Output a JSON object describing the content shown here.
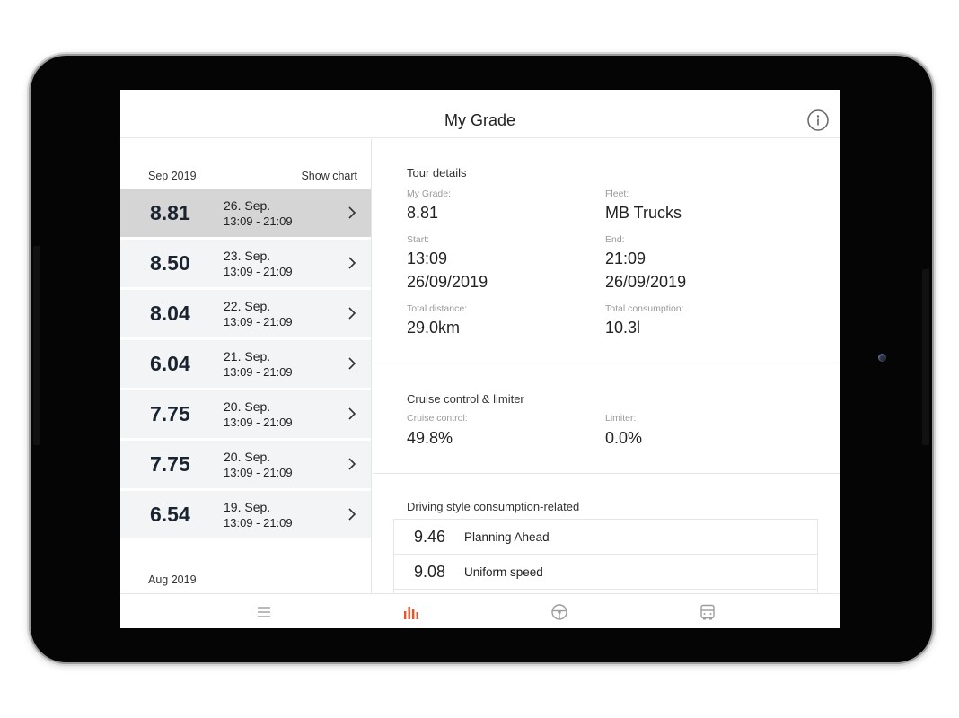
{
  "app": {
    "title": "My Grade"
  },
  "sidebar": {
    "months": [
      "Sep 2019",
      "Aug 2019"
    ],
    "show_chart_label": "Show chart",
    "tours": [
      {
        "grade": "8.81",
        "date": "26. Sep.",
        "time": "13:09 - 21:09",
        "selected": true
      },
      {
        "grade": "8.50",
        "date": "23. Sep.",
        "time": "13:09 - 21:09",
        "selected": false
      },
      {
        "grade": "8.04",
        "date": "22. Sep.",
        "time": "13:09 - 21:09",
        "selected": false
      },
      {
        "grade": "6.04",
        "date": "21. Sep.",
        "time": "13:09 - 21:09",
        "selected": false
      },
      {
        "grade": "7.75",
        "date": "20. Sep.",
        "time": "13:09 - 21:09",
        "selected": false
      },
      {
        "grade": "7.75",
        "date": "20. Sep.",
        "time": "13:09 - 21:09",
        "selected": false
      },
      {
        "grade": "6.54",
        "date": "19. Sep.",
        "time": "13:09 - 21:09",
        "selected": false
      }
    ]
  },
  "details": {
    "tour": {
      "title": "Tour details",
      "grade_label": "My Grade:",
      "grade_value": "8.81",
      "fleet_label": "Fleet:",
      "fleet_value": "MB Trucks",
      "start_label": "Start:",
      "start_time": "13:09",
      "start_date": "26/09/2019",
      "end_label": "End:",
      "end_time": "21:09",
      "end_date": "26/09/2019",
      "distance_label": "Total distance:",
      "distance_value": "29.0km",
      "consumption_label": "Total consumption:",
      "consumption_value": "10.3l"
    },
    "cruise": {
      "title": "Cruise control & limiter",
      "cruise_label": "Cruise control:",
      "cruise_value": "49.8%",
      "limiter_label": "Limiter:",
      "limiter_value": "0.0%"
    },
    "driving_style": {
      "title": "Driving style consumption-related",
      "rows": [
        {
          "value": "9.46",
          "name": "Planning Ahead"
        },
        {
          "value": "9.08",
          "name": "Uniform speed"
        }
      ]
    }
  },
  "bottom_nav": {
    "items": [
      "list-icon",
      "bar-chart-icon",
      "steering-wheel-icon",
      "truck-icon"
    ],
    "active_index": 1,
    "accent": "#e8542a",
    "inactive": "#9c9c9c"
  },
  "colors": {
    "selected_row": "#d5d5d5",
    "row_bg": "#f3f4f6",
    "grade_text": "#1a2330"
  }
}
